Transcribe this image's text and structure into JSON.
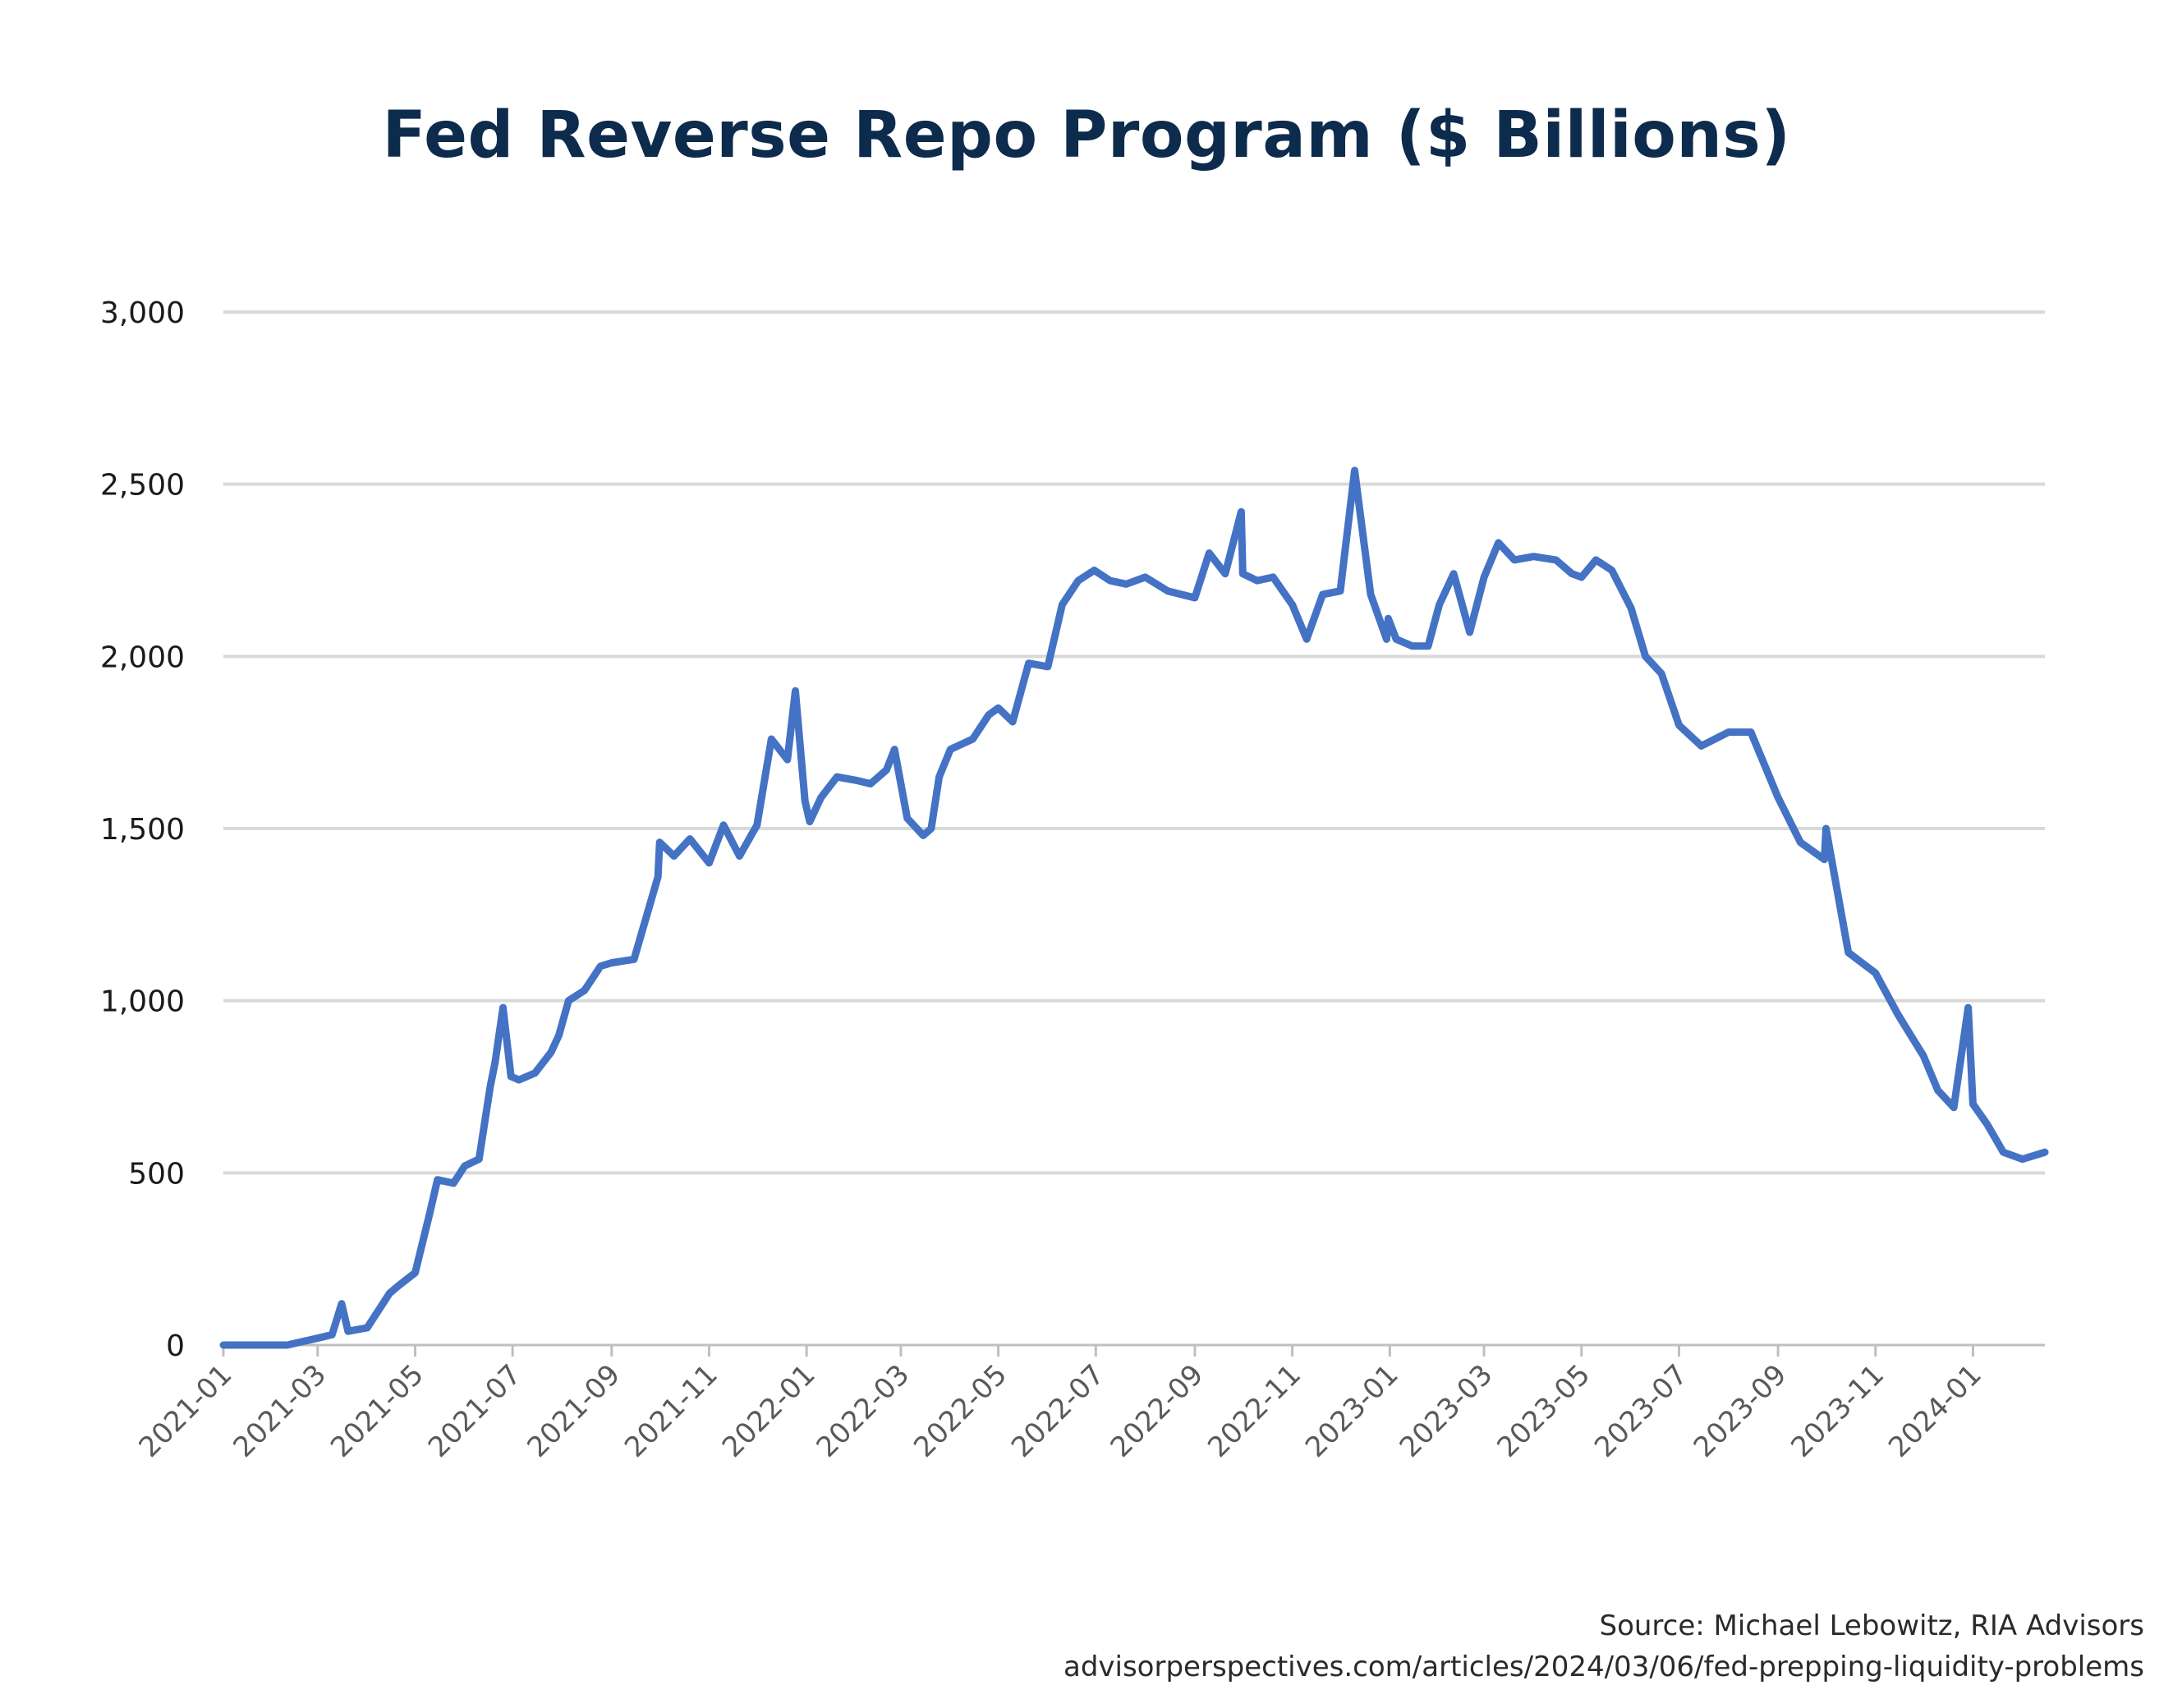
{
  "chart_data": {
    "type": "line",
    "title": "Fed Reverse Repo Program ($ Billions)",
    "xlabel": "",
    "ylabel": "",
    "ylim": [
      0,
      3000
    ],
    "xlim": [
      "2021-01",
      "2024-02-15"
    ],
    "grid": true,
    "y_ticks": [
      {
        "value": 0,
        "label": "0"
      },
      {
        "value": 500,
        "label": "500"
      },
      {
        "value": 1000,
        "label": "1,000"
      },
      {
        "value": 1500,
        "label": "1,500"
      },
      {
        "value": 2000,
        "label": "2,000"
      },
      {
        "value": 2500,
        "label": "2,500"
      },
      {
        "value": 3000,
        "label": "3,000"
      }
    ],
    "x_ticks": [
      "2021-01",
      "2021-03",
      "2021-05",
      "2021-07",
      "2021-09",
      "2021-11",
      "2022-01",
      "2022-03",
      "2022-05",
      "2022-07",
      "2022-09",
      "2022-11",
      "2023-01",
      "2023-03",
      "2023-05",
      "2023-07",
      "2023-09",
      "2023-11",
      "2024-01"
    ],
    "line_color": "#4472c4",
    "series": [
      {
        "x": [
          "2021-01-01",
          "2021-01-20",
          "2021-02-10",
          "2021-03-01",
          "2021-03-10",
          "2021-03-16",
          "2021-03-20",
          "2021-04-01",
          "2021-04-15",
          "2021-04-20",
          "2021-05-01",
          "2021-05-10",
          "2021-05-15",
          "2021-05-25",
          "2021-06-01",
          "2021-06-10",
          "2021-06-17",
          "2021-06-20",
          "2021-06-25",
          "2021-06-30",
          "2021-07-05",
          "2021-07-15",
          "2021-07-25",
          "2021-07-30",
          "2021-08-05",
          "2021-08-15",
          "2021-08-25",
          "2021-09-01",
          "2021-09-15",
          "2021-09-30",
          "2021-10-01",
          "2021-10-10",
          "2021-10-20",
          "2021-11-01",
          "2021-11-10",
          "2021-11-20",
          "2021-12-01",
          "2021-12-10",
          "2021-12-20",
          "2021-12-25",
          "2021-12-31",
          "2022-01-03",
          "2022-01-10",
          "2022-01-20",
          "2022-02-01",
          "2022-02-10",
          "2022-02-20",
          "2022-02-25",
          "2022-03-05",
          "2022-03-15",
          "2022-03-20",
          "2022-03-25",
          "2022-04-01",
          "2022-04-15",
          "2022-04-25",
          "2022-05-01",
          "2022-05-10",
          "2022-05-20",
          "2022-06-01",
          "2022-06-10",
          "2022-06-20",
          "2022-06-30",
          "2022-07-10",
          "2022-07-20",
          "2022-08-01",
          "2022-08-15",
          "2022-09-01",
          "2022-09-10",
          "2022-09-20",
          "2022-09-30",
          "2022-10-01",
          "2022-10-10",
          "2022-10-20",
          "2022-11-01",
          "2022-11-10",
          "2022-11-20",
          "2022-12-01",
          "2022-12-10",
          "2022-12-20",
          "2022-12-30",
          "2022-12-31",
          "2023-01-05",
          "2023-01-15",
          "2023-01-25",
          "2023-02-01",
          "2023-02-10",
          "2023-02-20",
          "2023-03-01",
          "2023-03-10",
          "2023-03-20",
          "2023-04-01",
          "2023-04-15",
          "2023-04-25",
          "2023-05-01",
          "2023-05-10",
          "2023-05-20",
          "2023-06-01",
          "2023-06-10",
          "2023-06-20",
          "2023-07-01",
          "2023-07-15",
          "2023-08-01",
          "2023-08-15",
          "2023-09-01",
          "2023-09-15",
          "2023-09-30",
          "2023-10-01",
          "2023-10-15",
          "2023-11-01",
          "2023-11-15",
          "2023-12-01",
          "2023-12-10",
          "2023-12-20",
          "2023-12-29",
          "2024-01-01",
          "2024-01-10",
          "2024-01-20",
          "2024-02-01",
          "2024-02-15"
        ],
        "y": [
          0,
          0,
          0,
          20,
          30,
          120,
          40,
          50,
          150,
          170,
          210,
          380,
          480,
          470,
          520,
          540,
          750,
          820,
          980,
          780,
          770,
          790,
          850,
          900,
          1000,
          1030,
          1100,
          1110,
          1120,
          1360,
          1460,
          1420,
          1470,
          1400,
          1510,
          1420,
          1510,
          1760,
          1700,
          1900,
          1580,
          1520,
          1590,
          1650,
          1640,
          1630,
          1670,
          1730,
          1530,
          1480,
          1500,
          1650,
          1730,
          1760,
          1830,
          1850,
          1810,
          1980,
          1970,
          2150,
          2220,
          2250,
          2220,
          2210,
          2230,
          2190,
          2170,
          2300,
          2240,
          2420,
          2240,
          2220,
          2230,
          2150,
          2050,
          2180,
          2190,
          2540,
          2180,
          2050,
          2110,
          2050,
          2030,
          2030,
          2150,
          2240,
          2070,
          2230,
          2330,
          2280,
          2290,
          2280,
          2240,
          2230,
          2280,
          2250,
          2140,
          2000,
          1950,
          1800,
          1740,
          1780,
          1780,
          1590,
          1460,
          1410,
          1500,
          1140,
          1080,
          960,
          840,
          740,
          690,
          980,
          700,
          640,
          560,
          540,
          560
        ]
      }
    ],
    "annotations": []
  },
  "source": {
    "line1": "Source: Michael Lebowitz, RIA Advisors",
    "line2": "advisorperspectives.com/articles/2024/03/06/fed-prepping-liquidity-problems"
  }
}
